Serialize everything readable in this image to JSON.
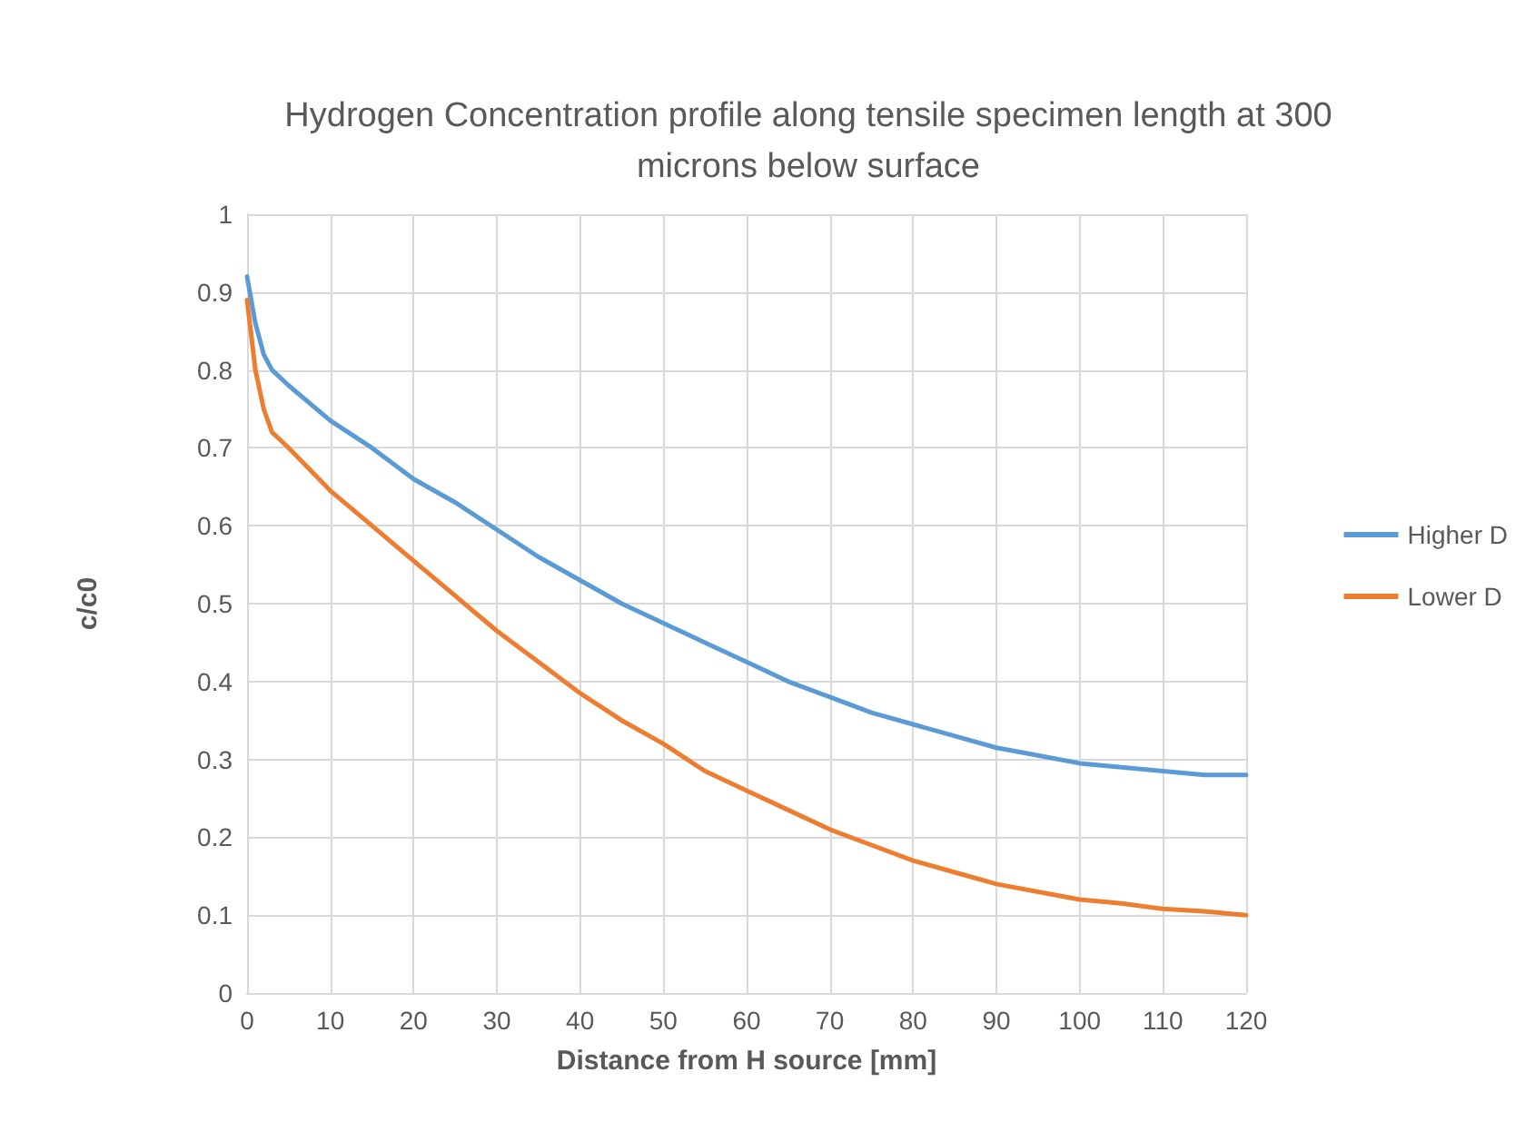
{
  "chart_data": {
    "type": "line",
    "title": "Hydrogen Concentration profile along tensile specimen length at 300 microns below surface",
    "xlabel": "Distance from H source [mm]",
    "ylabel": "c/c0",
    "x": [
      0,
      1,
      2,
      3,
      5,
      10,
      15,
      20,
      25,
      30,
      35,
      40,
      45,
      50,
      55,
      60,
      65,
      70,
      75,
      80,
      85,
      90,
      95,
      100,
      105,
      110,
      115,
      120
    ],
    "series": [
      {
        "name": "Higher D",
        "color": "#5b9bd5",
        "values": [
          0.92,
          0.86,
          0.82,
          0.8,
          0.78,
          0.735,
          0.7,
          0.66,
          0.63,
          0.595,
          0.56,
          0.53,
          0.5,
          0.475,
          0.45,
          0.425,
          0.4,
          0.38,
          0.36,
          0.345,
          0.33,
          0.315,
          0.305,
          0.295,
          0.29,
          0.285,
          0.28,
          0.28
        ]
      },
      {
        "name": "Lower D",
        "color": "#ed7d31",
        "values": [
          0.89,
          0.8,
          0.75,
          0.72,
          0.7,
          0.645,
          0.6,
          0.555,
          0.51,
          0.465,
          0.425,
          0.385,
          0.35,
          0.32,
          0.285,
          0.26,
          0.235,
          0.21,
          0.19,
          0.17,
          0.155,
          0.14,
          0.13,
          0.12,
          0.115,
          0.108,
          0.105,
          0.1
        ]
      }
    ],
    "xlim": [
      0,
      120
    ],
    "xticks": [
      0,
      10,
      20,
      30,
      40,
      50,
      60,
      70,
      80,
      90,
      100,
      110,
      120
    ],
    "ylim": [
      0,
      1
    ],
    "yticks": [
      0,
      0.1,
      0.2,
      0.3,
      0.4,
      0.5,
      0.6,
      0.7,
      0.8,
      0.9,
      1
    ],
    "grid": true,
    "legend": "right",
    "marker": "none",
    "line_style": "solid"
  }
}
